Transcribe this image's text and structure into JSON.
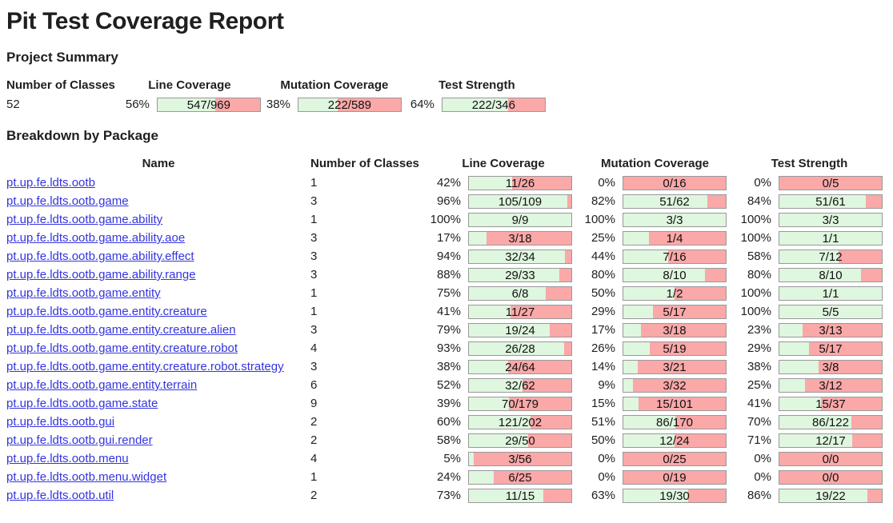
{
  "page": {
    "title": "Pit Test Coverage Report",
    "summary_heading": "Project Summary",
    "breakdown_heading": "Breakdown by Package"
  },
  "colors": {
    "bar_green": "#dff6df",
    "bar_red": "#fba8a8",
    "bar_border": "#999999",
    "link_blue": "#3434e0",
    "text": "#1f1f1f"
  },
  "summary": {
    "columns": {
      "classes": "Number of Classes",
      "line": "Line Coverage",
      "mutation": "Mutation Coverage",
      "strength": "Test Strength"
    },
    "classes_value": "52",
    "line": {
      "pct": "56%",
      "label": "547/969"
    },
    "mutation": {
      "pct": "38%",
      "label": "222/589"
    },
    "strength": {
      "pct": "64%",
      "label": "222/346"
    }
  },
  "breakdown": {
    "columns": {
      "name": "Name",
      "classes": "Number of Classes",
      "line": "Line Coverage",
      "mutation": "Mutation Coverage",
      "strength": "Test Strength"
    },
    "rows": [
      {
        "name": "pt.up.fe.ldts.ootb",
        "classes": "1",
        "line": {
          "pct": "42%",
          "label": "11/26"
        },
        "mutation": {
          "pct": "0%",
          "label": "0/16"
        },
        "strength": {
          "pct": "0%",
          "label": "0/5"
        }
      },
      {
        "name": "pt.up.fe.ldts.ootb.game",
        "classes": "3",
        "line": {
          "pct": "96%",
          "label": "105/109"
        },
        "mutation": {
          "pct": "82%",
          "label": "51/62"
        },
        "strength": {
          "pct": "84%",
          "label": "51/61"
        }
      },
      {
        "name": "pt.up.fe.ldts.ootb.game.ability",
        "classes": "1",
        "line": {
          "pct": "100%",
          "label": "9/9"
        },
        "mutation": {
          "pct": "100%",
          "label": "3/3"
        },
        "strength": {
          "pct": "100%",
          "label": "3/3"
        }
      },
      {
        "name": "pt.up.fe.ldts.ootb.game.ability.aoe",
        "classes": "3",
        "line": {
          "pct": "17%",
          "label": "3/18"
        },
        "mutation": {
          "pct": "25%",
          "label": "1/4"
        },
        "strength": {
          "pct": "100%",
          "label": "1/1"
        }
      },
      {
        "name": "pt.up.fe.ldts.ootb.game.ability.effect",
        "classes": "3",
        "line": {
          "pct": "94%",
          "label": "32/34"
        },
        "mutation": {
          "pct": "44%",
          "label": "7/16"
        },
        "strength": {
          "pct": "58%",
          "label": "7/12"
        }
      },
      {
        "name": "pt.up.fe.ldts.ootb.game.ability.range",
        "classes": "3",
        "line": {
          "pct": "88%",
          "label": "29/33"
        },
        "mutation": {
          "pct": "80%",
          "label": "8/10"
        },
        "strength": {
          "pct": "80%",
          "label": "8/10"
        }
      },
      {
        "name": "pt.up.fe.ldts.ootb.game.entity",
        "classes": "1",
        "line": {
          "pct": "75%",
          "label": "6/8"
        },
        "mutation": {
          "pct": "50%",
          "label": "1/2"
        },
        "strength": {
          "pct": "100%",
          "label": "1/1"
        }
      },
      {
        "name": "pt.up.fe.ldts.ootb.game.entity.creature",
        "classes": "1",
        "line": {
          "pct": "41%",
          "label": "11/27"
        },
        "mutation": {
          "pct": "29%",
          "label": "5/17"
        },
        "strength": {
          "pct": "100%",
          "label": "5/5"
        }
      },
      {
        "name": "pt.up.fe.ldts.ootb.game.entity.creature.alien",
        "classes": "3",
        "line": {
          "pct": "79%",
          "label": "19/24"
        },
        "mutation": {
          "pct": "17%",
          "label": "3/18"
        },
        "strength": {
          "pct": "23%",
          "label": "3/13"
        }
      },
      {
        "name": "pt.up.fe.ldts.ootb.game.entity.creature.robot",
        "classes": "4",
        "line": {
          "pct": "93%",
          "label": "26/28"
        },
        "mutation": {
          "pct": "26%",
          "label": "5/19"
        },
        "strength": {
          "pct": "29%",
          "label": "5/17"
        }
      },
      {
        "name": "pt.up.fe.ldts.ootb.game.entity.creature.robot.strategy",
        "classes": "3",
        "line": {
          "pct": "38%",
          "label": "24/64"
        },
        "mutation": {
          "pct": "14%",
          "label": "3/21"
        },
        "strength": {
          "pct": "38%",
          "label": "3/8"
        }
      },
      {
        "name": "pt.up.fe.ldts.ootb.game.entity.terrain",
        "classes": "6",
        "line": {
          "pct": "52%",
          "label": "32/62"
        },
        "mutation": {
          "pct": "9%",
          "label": "3/32"
        },
        "strength": {
          "pct": "25%",
          "label": "3/12"
        }
      },
      {
        "name": "pt.up.fe.ldts.ootb.game.state",
        "classes": "9",
        "line": {
          "pct": "39%",
          "label": "70/179"
        },
        "mutation": {
          "pct": "15%",
          "label": "15/101"
        },
        "strength": {
          "pct": "41%",
          "label": "15/37"
        }
      },
      {
        "name": "pt.up.fe.ldts.ootb.gui",
        "classes": "2",
        "line": {
          "pct": "60%",
          "label": "121/202"
        },
        "mutation": {
          "pct": "51%",
          "label": "86/170"
        },
        "strength": {
          "pct": "70%",
          "label": "86/122"
        }
      },
      {
        "name": "pt.up.fe.ldts.ootb.gui.render",
        "classes": "2",
        "line": {
          "pct": "58%",
          "label": "29/50"
        },
        "mutation": {
          "pct": "50%",
          "label": "12/24"
        },
        "strength": {
          "pct": "71%",
          "label": "12/17"
        }
      },
      {
        "name": "pt.up.fe.ldts.ootb.menu",
        "classes": "4",
        "line": {
          "pct": "5%",
          "label": "3/56"
        },
        "mutation": {
          "pct": "0%",
          "label": "0/25"
        },
        "strength": {
          "pct": "0%",
          "label": "0/0"
        }
      },
      {
        "name": "pt.up.fe.ldts.ootb.menu.widget",
        "classes": "1",
        "line": {
          "pct": "24%",
          "label": "6/25"
        },
        "mutation": {
          "pct": "0%",
          "label": "0/19"
        },
        "strength": {
          "pct": "0%",
          "label": "0/0"
        }
      },
      {
        "name": "pt.up.fe.ldts.ootb.util",
        "classes": "2",
        "line": {
          "pct": "73%",
          "label": "11/15"
        },
        "mutation": {
          "pct": "63%",
          "label": "19/30"
        },
        "strength": {
          "pct": "86%",
          "label": "19/22"
        }
      }
    ]
  }
}
